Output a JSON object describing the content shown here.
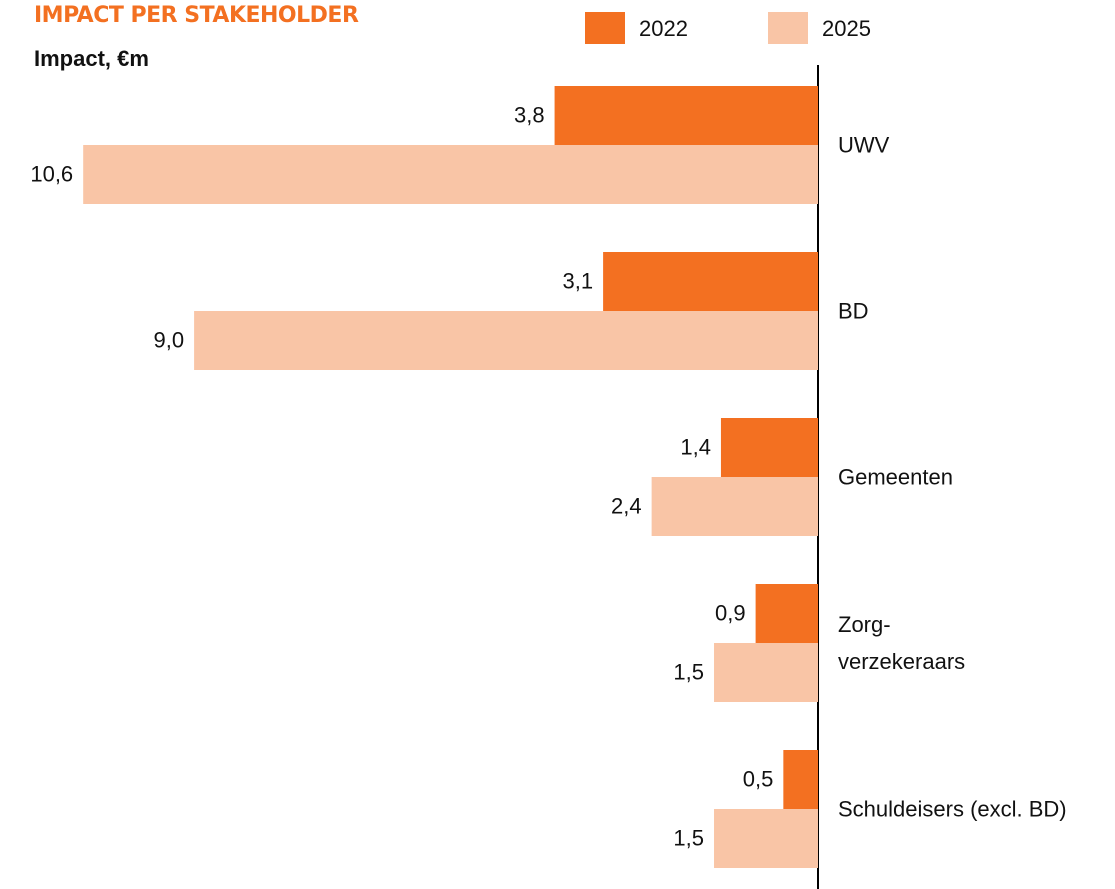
{
  "chart_data": {
    "type": "hbar",
    "title": "IMPACT PER STAKEHOLDER",
    "subtitle": "Impact, €m",
    "categories": [
      "UWV",
      "BD",
      "Gemeenten",
      "Zorg-\nverzekeraars",
      "Schuldeisers (excl. BD)"
    ],
    "series": [
      {
        "name": "2022",
        "color": "#f37021",
        "values": [
          3.8,
          3.1,
          1.4,
          0.9,
          0.5
        ],
        "value_labels": [
          "3,8",
          "3,1",
          "1,4",
          "0,9",
          "0,5"
        ]
      },
      {
        "name": "2025",
        "color": "#f9c5a6",
        "values": [
          10.6,
          9.0,
          2.4,
          1.5,
          1.5
        ],
        "value_labels": [
          "10,6",
          "9,0",
          "2,4",
          "1,5",
          "1,5"
        ]
      }
    ],
    "xlim": [
      0,
      11.8
    ],
    "legend": "top-right"
  }
}
